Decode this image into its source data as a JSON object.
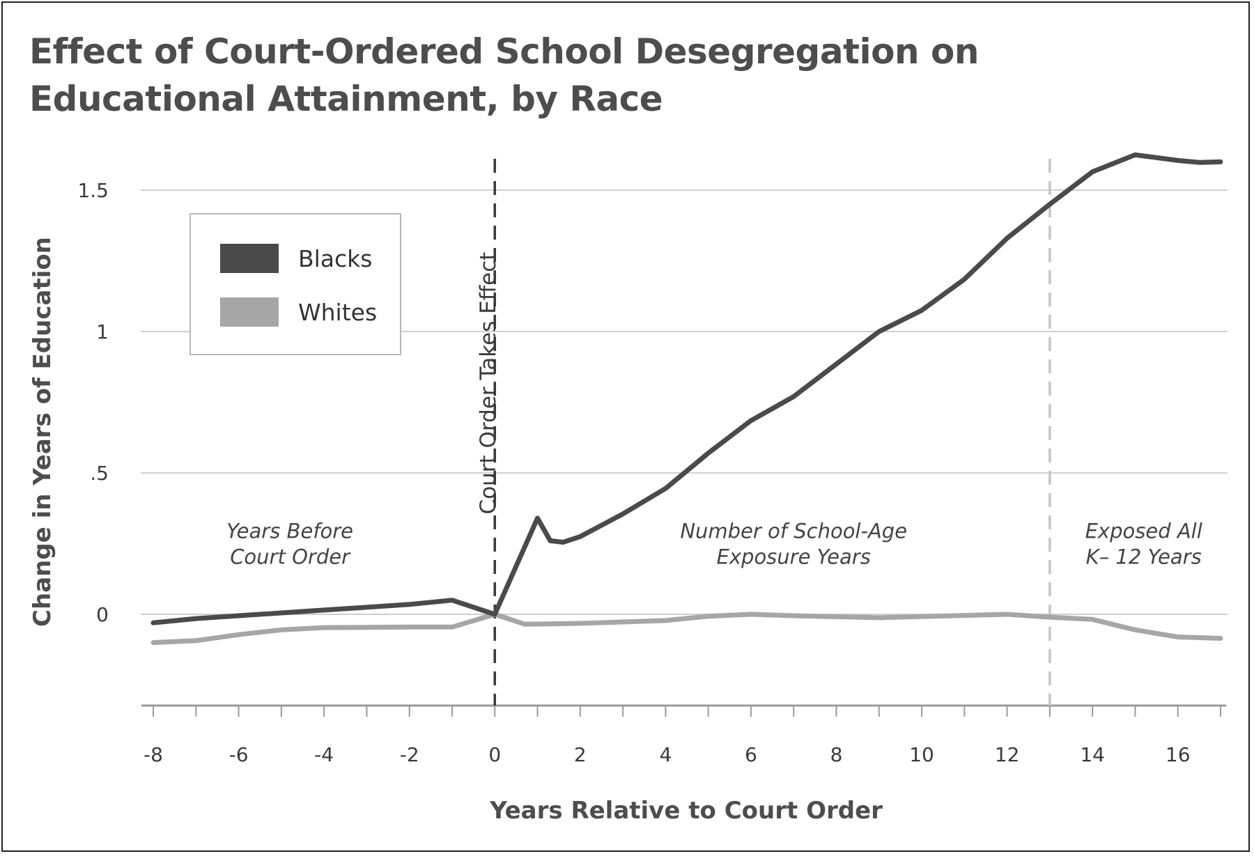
{
  "title": "Effect of Court-Ordered School Desegregation on Educational Attainment, by Race",
  "chart_data": {
    "type": "line",
    "title": "Effect of Court-Ordered School Desegregation on Educational Attainment, by Race",
    "xlabel": "Years Relative to Court Order",
    "ylabel": "Change in Years of Education",
    "xlim": [
      -8,
      17
    ],
    "ylim": [
      -0.32,
      1.72
    ],
    "x_ticks": [
      -8,
      -6,
      -4,
      -2,
      0,
      2,
      4,
      6,
      8,
      10,
      12,
      14,
      16
    ],
    "x_tick_labels": [
      "-8",
      "-6",
      "-4",
      "-2",
      "0",
      "2",
      "4",
      "6",
      "8",
      "10",
      "12",
      "14",
      "16"
    ],
    "y_ticks": [
      0,
      0.5,
      1,
      1.5
    ],
    "y_tick_labels": [
      "0",
      ".5",
      "1",
      "1.5"
    ],
    "grid": "horizontal",
    "legend_position": "top-left",
    "series": [
      {
        "name": "Blacks",
        "color": "#4a4a4a",
        "points": [
          [
            -8,
            -0.03
          ],
          [
            -7,
            -0.015
          ],
          [
            -6,
            -0.005
          ],
          [
            -5,
            0.005
          ],
          [
            -4,
            0.015
          ],
          [
            -3,
            0.025
          ],
          [
            -2,
            0.035
          ],
          [
            -1,
            0.05
          ],
          [
            0,
            0.0
          ],
          [
            1,
            0.34
          ],
          [
            1.3,
            0.26
          ],
          [
            1.6,
            0.255
          ],
          [
            2,
            0.275
          ],
          [
            3,
            0.355
          ],
          [
            4,
            0.445
          ],
          [
            5,
            0.57
          ],
          [
            6,
            0.685
          ],
          [
            7,
            0.77
          ],
          [
            8,
            0.885
          ],
          [
            9,
            1.0
          ],
          [
            10,
            1.075
          ],
          [
            11,
            1.185
          ],
          [
            12,
            1.33
          ],
          [
            13,
            1.45
          ],
          [
            14,
            1.565
          ],
          [
            15,
            1.625
          ],
          [
            16,
            1.605
          ],
          [
            16.5,
            1.598
          ],
          [
            17,
            1.6
          ]
        ]
      },
      {
        "name": "Whites",
        "color": "#a6a6a6",
        "points": [
          [
            -8,
            -0.1
          ],
          [
            -7,
            -0.093
          ],
          [
            -6,
            -0.072
          ],
          [
            -5,
            -0.055
          ],
          [
            -4,
            -0.047
          ],
          [
            -3,
            -0.046
          ],
          [
            -2,
            -0.045
          ],
          [
            -1,
            -0.045
          ],
          [
            0,
            0.0
          ],
          [
            0.7,
            -0.035
          ],
          [
            2,
            -0.032
          ],
          [
            4,
            -0.022
          ],
          [
            5,
            -0.007
          ],
          [
            6,
            0.0
          ],
          [
            7,
            -0.005
          ],
          [
            9,
            -0.012
          ],
          [
            10,
            -0.008
          ],
          [
            12,
            0.0
          ],
          [
            13,
            -0.01
          ],
          [
            14,
            -0.018
          ],
          [
            15,
            -0.055
          ],
          [
            16,
            -0.08
          ],
          [
            17,
            -0.085
          ]
        ]
      }
    ],
    "reference_lines": [
      {
        "x": 0,
        "label": "Court Order Takes Effect",
        "style": "dashed",
        "color": "#3a3a3a"
      },
      {
        "x": 13,
        "style": "dashed",
        "color": "#c4c4c4"
      }
    ],
    "annotations": [
      {
        "text": [
          "Years Before",
          "Court Order"
        ],
        "x": -4.8,
        "y": 0.27
      },
      {
        "text": [
          "Number of School-Age",
          "Exposure Years"
        ],
        "x": 7,
        "y": 0.27
      },
      {
        "text": [
          "Exposed All",
          "K– 12 Years"
        ],
        "x": 15.2,
        "y": 0.27
      }
    ]
  }
}
